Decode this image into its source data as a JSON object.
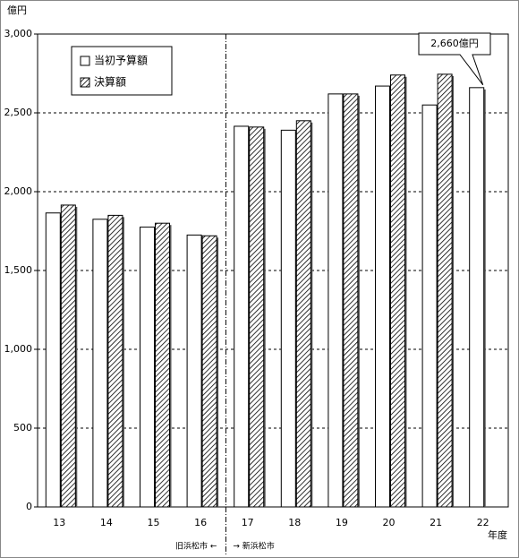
{
  "chart_data": {
    "type": "bar",
    "y_label": "億円",
    "x_label": "年度",
    "categories": [
      "13",
      "14",
      "15",
      "16",
      "17",
      "18",
      "19",
      "20",
      "21",
      "22"
    ],
    "series": [
      {
        "name": "当初予算額",
        "color": "#ffffff",
        "values": [
          1865,
          1825,
          1775,
          1725,
          2415,
          2390,
          2620,
          2670,
          2550,
          2660
        ]
      },
      {
        "name": "決算額",
        "color": "#ffffff",
        "hatch": true,
        "values": [
          1915,
          1850,
          1800,
          1720,
          2410,
          2450,
          2620,
          2740,
          2745,
          null
        ]
      }
    ],
    "ylim": [
      0,
      3000
    ],
    "yticks": [
      0,
      500,
      {
        "value": 1000,
        "label": "1,000"
      },
      {
        "value": 1500,
        "label": "1,500"
      },
      {
        "value": 2000,
        "label": "2,000"
      },
      {
        "value": 2500,
        "label": "2,500"
      },
      {
        "value": 3000,
        "label": "3,000"
      }
    ],
    "grid": true,
    "annotation": "2,660億円",
    "divider_notes": [
      "旧浜松市 ←",
      "→ 新浜松市"
    ],
    "legend": "upper left"
  }
}
